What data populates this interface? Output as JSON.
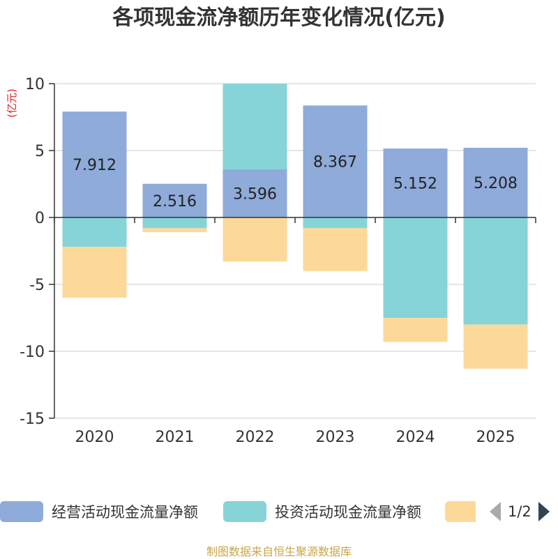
{
  "chart_data": {
    "type": "bar",
    "stacked": true,
    "title": "各项现金流净额历年变化情况(亿元)",
    "ylabel": "(亿元)",
    "categories": [
      "2020",
      "2021",
      "2022",
      "2023",
      "2024",
      "2025"
    ],
    "ylim": [
      -15,
      10
    ],
    "yticks": [
      10,
      5,
      0,
      -5,
      -10,
      -15
    ],
    "ytick_labels": [
      "10",
      "5",
      "0",
      "-5",
      "-10",
      "-15"
    ],
    "series": [
      {
        "name": "经营活动现金流量净额",
        "color": "#8eabd9",
        "values": [
          7.912,
          2.516,
          3.596,
          8.367,
          5.152,
          5.208
        ],
        "data_labels": [
          "7.912",
          "2.516",
          "3.596",
          "8.367",
          "5.152",
          "5.208"
        ]
      },
      {
        "name": "投资活动现金流量净额",
        "color": "#86d4d7",
        "values": [
          -2.2,
          -0.8,
          6.4,
          -0.8,
          -7.5,
          -8.0
        ]
      },
      {
        "name": "",
        "color": "#fdd999",
        "values": [
          -3.8,
          -0.3,
          -3.3,
          -3.2,
          -1.8,
          -3.3
        ]
      }
    ]
  },
  "legend": {
    "items": [
      {
        "label": "经营活动现金流量净额",
        "color": "#8eabd9"
      },
      {
        "label": "投资活动现金流量净额",
        "color": "#86d4d7"
      },
      {
        "label": "",
        "color": "#fdd999"
      }
    ],
    "page": "1/2"
  },
  "footer": {
    "source": "制图数据来自恒生聚源数据库"
  }
}
